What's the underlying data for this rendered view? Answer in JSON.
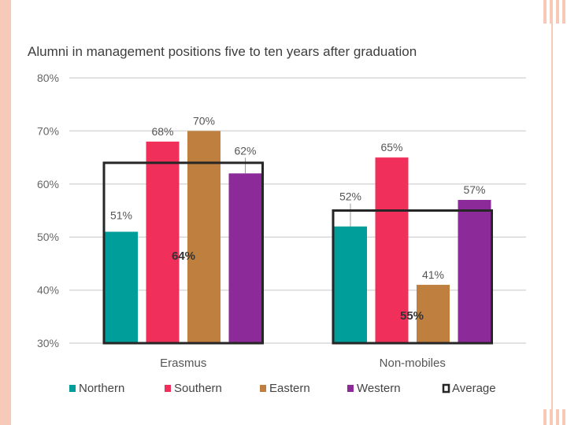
{
  "chart_data": {
    "type": "bar",
    "title": "Alumni in management positions five to ten years after graduation",
    "categories": [
      "Erasmus",
      "Non-mobiles"
    ],
    "series": [
      {
        "name": "Northern",
        "color": "#009e9a",
        "values": [
          51,
          52
        ],
        "labels": [
          "51%",
          "52%"
        ]
      },
      {
        "name": "Southern",
        "color": "#f0305a",
        "values": [
          68,
          65
        ],
        "labels": [
          "68%",
          "65%"
        ]
      },
      {
        "name": "Eastern",
        "color": "#bf7f3f",
        "values": [
          70,
          41
        ],
        "labels": [
          "70%",
          "41%"
        ]
      },
      {
        "name": "Western",
        "color": "#8c2a9a",
        "values": [
          62,
          57
        ],
        "labels": [
          "62%",
          "57%"
        ]
      }
    ],
    "average": {
      "name": "Average",
      "values": [
        64,
        55
      ],
      "labels": [
        "64%",
        "55%"
      ]
    },
    "ylim": [
      30,
      80
    ],
    "yticks": [
      30,
      40,
      50,
      60,
      70,
      80
    ],
    "ytick_labels": [
      "30%",
      "40%",
      "50%",
      "60%",
      "70%",
      "80%"
    ],
    "grid": true,
    "legend_position": "bottom"
  }
}
